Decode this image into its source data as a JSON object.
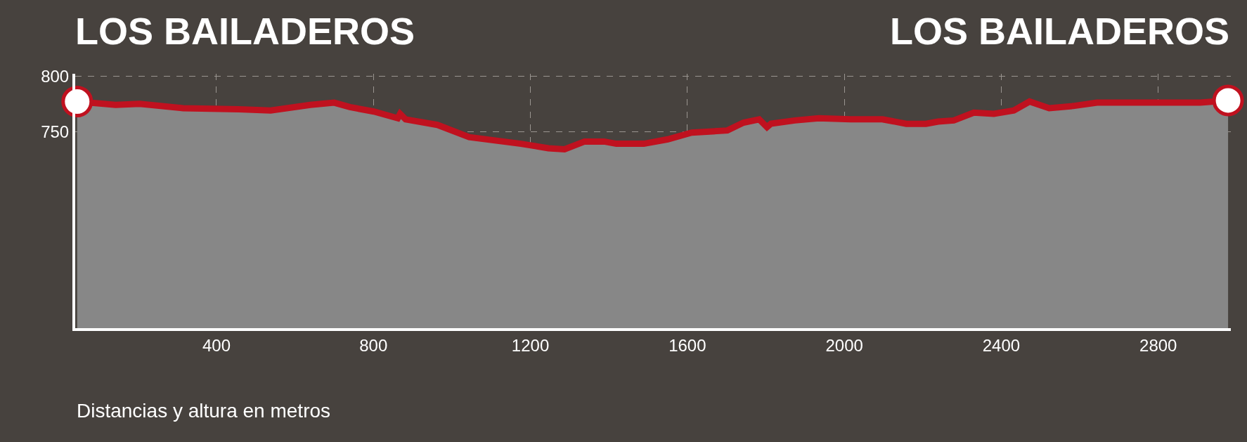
{
  "chart_data": {
    "type": "area",
    "title": "LOS BAILADEROS",
    "annotations": [
      "LOS BAILADEROS",
      "Distancias y altura en metros"
    ],
    "xlim": [
      40,
      2985
    ],
    "xticks": [
      400,
      800,
      1200,
      1600,
      2000,
      2400,
      2800
    ],
    "ylim": [
      573,
      802
    ],
    "yticks": [
      750,
      800
    ],
    "grid": true,
    "series": [
      {
        "color": "#c0111f",
        "x": [
          45,
          143,
          204,
          315,
          457,
          538,
          639,
          700,
          740,
          801,
          862,
          868,
          882,
          963,
          1044,
          1176,
          1246,
          1287,
          1338,
          1388,
          1419,
          1489,
          1550,
          1611,
          1702,
          1743,
          1783,
          1803,
          1813,
          1874,
          1935,
          2016,
          2097,
          2158,
          2208,
          2239,
          2279,
          2330,
          2381,
          2432,
          2472,
          2522,
          2583,
          2644,
          2745,
          2826,
          2907,
          2978
        ],
        "values": [
          777,
          774,
          775,
          771,
          770,
          769,
          774,
          776,
          772,
          768,
          762,
          766,
          761,
          756,
          745,
          739,
          735,
          734,
          741,
          741,
          739,
          739,
          743,
          749,
          751,
          758,
          761,
          754,
          757,
          760,
          762,
          761,
          761,
          757,
          757,
          759,
          760,
          767,
          766,
          769,
          777,
          771,
          773,
          776,
          776,
          776,
          776,
          778
        ]
      },
      {
        "type": "scatter",
        "marker": "circle",
        "color": "#ffffff",
        "x": [
          45,
          2978
        ],
        "values": [
          777,
          778
        ]
      }
    ]
  }
}
